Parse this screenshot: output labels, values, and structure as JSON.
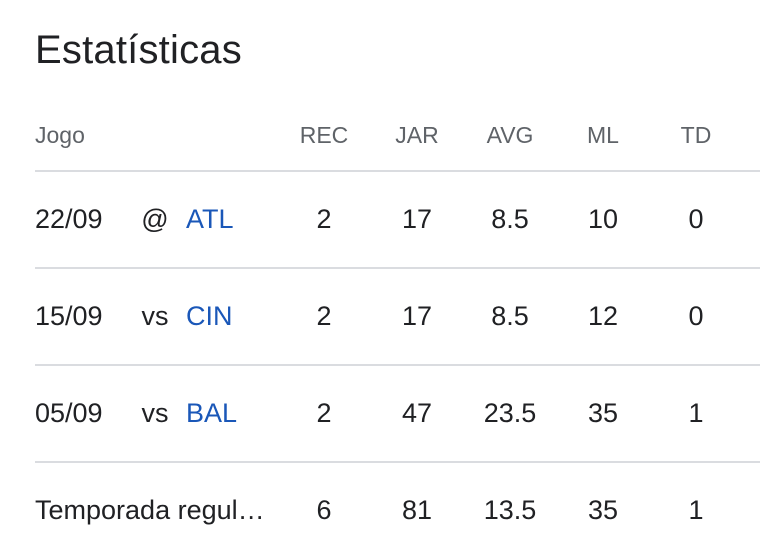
{
  "title": "Estatísticas",
  "columns": {
    "game": "Jogo",
    "rec": "REC",
    "jar": "JAR",
    "avg": "AVG",
    "ml": "ML",
    "td": "TD"
  },
  "games": [
    {
      "date": "22/09",
      "venue": "@",
      "team": "ATL",
      "rec": "2",
      "jar": "17",
      "avg": "8.5",
      "ml": "10",
      "td": "0"
    },
    {
      "date": "15/09",
      "venue": "vs",
      "team": "CIN",
      "rec": "2",
      "jar": "17",
      "avg": "8.5",
      "ml": "12",
      "td": "0"
    },
    {
      "date": "05/09",
      "venue": "vs",
      "team": "BAL",
      "rec": "2",
      "jar": "47",
      "avg": "23.5",
      "ml": "35",
      "td": "1"
    }
  ],
  "season": {
    "label": "Temporada regul…",
    "rec": "6",
    "jar": "81",
    "avg": "13.5",
    "ml": "35",
    "td": "1"
  },
  "colors": {
    "team_link": "#1a57b8",
    "divider": "#dadce0",
    "header_text": "#5f6368"
  }
}
